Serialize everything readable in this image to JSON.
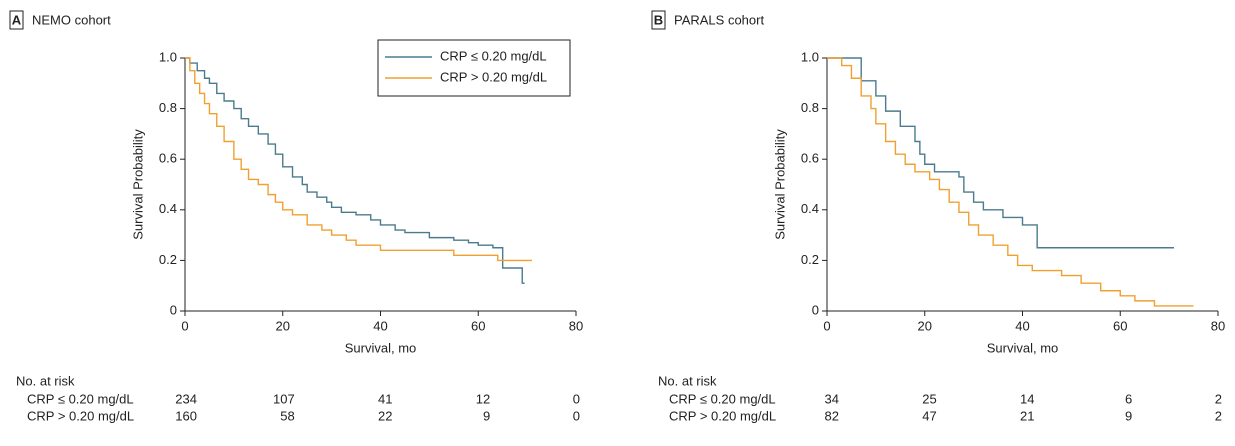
{
  "chart_data": [
    {
      "type": "step",
      "panel": "A",
      "title": "NEMO cohort",
      "xlabel": "Survival, mo",
      "ylabel": "Survival  Probability",
      "xlim": [
        0,
        80
      ],
      "xticks": [
        0,
        20,
        40,
        60,
        80
      ],
      "ylim": [
        0,
        1
      ],
      "yticks": [
        0,
        0.2,
        0.4,
        0.6,
        0.8,
        {
          "value": 1,
          "label": "1.0"
        }
      ],
      "legend": "top-right",
      "series": [
        {
          "name": "CRP ≤ 0.20 mg/dL",
          "color": "#4b7b8d",
          "x": [
            0,
            1,
            2.5,
            4,
            5,
            6.5,
            8,
            10,
            11.5,
            13,
            15,
            17,
            18.5,
            20,
            22,
            24,
            25,
            27,
            29,
            30,
            32,
            35,
            38,
            40,
            43,
            45,
            50,
            55,
            58,
            60,
            63,
            65,
            69,
            69.5
          ],
          "values": [
            1,
            0.98,
            0.95,
            0.92,
            0.9,
            0.86,
            0.83,
            0.8,
            0.76,
            0.73,
            0.7,
            0.66,
            0.62,
            0.57,
            0.53,
            0.5,
            0.47,
            0.45,
            0.43,
            0.41,
            0.39,
            0.38,
            0.36,
            0.34,
            0.32,
            0.31,
            0.29,
            0.28,
            0.27,
            0.26,
            0.25,
            0.17,
            0.11,
            0.11
          ]
        },
        {
          "name": "CRP > 0.20 mg/dL",
          "color": "#f0a030",
          "x": [
            0,
            1,
            2,
            3,
            4,
            5,
            6.5,
            8,
            10,
            11.5,
            13,
            15,
            17,
            18.5,
            20,
            22,
            25,
            28,
            30,
            33,
            35,
            40,
            50,
            55,
            60,
            64,
            71
          ],
          "values": [
            1,
            0.95,
            0.9,
            0.86,
            0.82,
            0.78,
            0.73,
            0.67,
            0.6,
            0.56,
            0.52,
            0.5,
            0.46,
            0.43,
            0.4,
            0.38,
            0.34,
            0.32,
            0.3,
            0.28,
            0.26,
            0.24,
            0.24,
            0.22,
            0.22,
            0.2,
            0.2
          ]
        }
      ],
      "risk_table": {
        "title": "No. at risk",
        "rows": [
          {
            "label": "CRP ≤ 0.20 mg/dL",
            "values": [
              234,
              107,
              41,
              12,
              0
            ]
          },
          {
            "label": "CRP > 0.20 mg/dL",
            "values": [
              160,
              58,
              22,
              9,
              0
            ]
          }
        ]
      }
    },
    {
      "type": "step",
      "panel": "B",
      "title": "PARALS cohort",
      "xlabel": "Survival, mo",
      "ylabel": "Survival  Probability",
      "xlim": [
        0,
        80
      ],
      "xticks": [
        0,
        20,
        40,
        60,
        80
      ],
      "ylim": [
        0,
        1
      ],
      "yticks": [
        0,
        0.2,
        0.4,
        0.6,
        0.8,
        {
          "value": 1,
          "label": "1.0"
        }
      ],
      "series": [
        {
          "color": "#4b7b8d",
          "x": [
            0,
            7,
            10,
            12,
            15,
            18,
            19,
            20,
            22,
            27,
            28,
            30,
            32,
            36,
            40,
            43,
            71
          ],
          "values": [
            1,
            0.91,
            0.85,
            0.79,
            0.73,
            0.67,
            0.62,
            0.58,
            0.55,
            0.53,
            0.47,
            0.43,
            0.4,
            0.37,
            0.34,
            0.25,
            0.25
          ]
        },
        {
          "color": "#f0a030",
          "x": [
            0,
            3,
            5,
            7,
            9,
            10,
            12,
            14,
            16,
            18,
            21,
            23,
            25,
            27,
            29,
            31,
            34,
            37,
            39,
            42,
            48,
            52,
            56,
            60,
            63,
            67,
            75
          ],
          "values": [
            1,
            0.97,
            0.92,
            0.85,
            0.8,
            0.74,
            0.67,
            0.62,
            0.58,
            0.55,
            0.52,
            0.48,
            0.43,
            0.39,
            0.34,
            0.3,
            0.26,
            0.22,
            0.18,
            0.16,
            0.14,
            0.11,
            0.08,
            0.06,
            0.04,
            0.02,
            0.02
          ]
        }
      ],
      "risk_table": {
        "title": "No. at risk",
        "rows": [
          {
            "label": "CRP ≤ 0.20 mg/dL",
            "values": [
              34,
              25,
              14,
              6,
              2
            ]
          },
          {
            "label": "CRP > 0.20 mg/dL",
            "values": [
              82,
              47,
              21,
              9,
              2
            ]
          }
        ]
      }
    }
  ]
}
